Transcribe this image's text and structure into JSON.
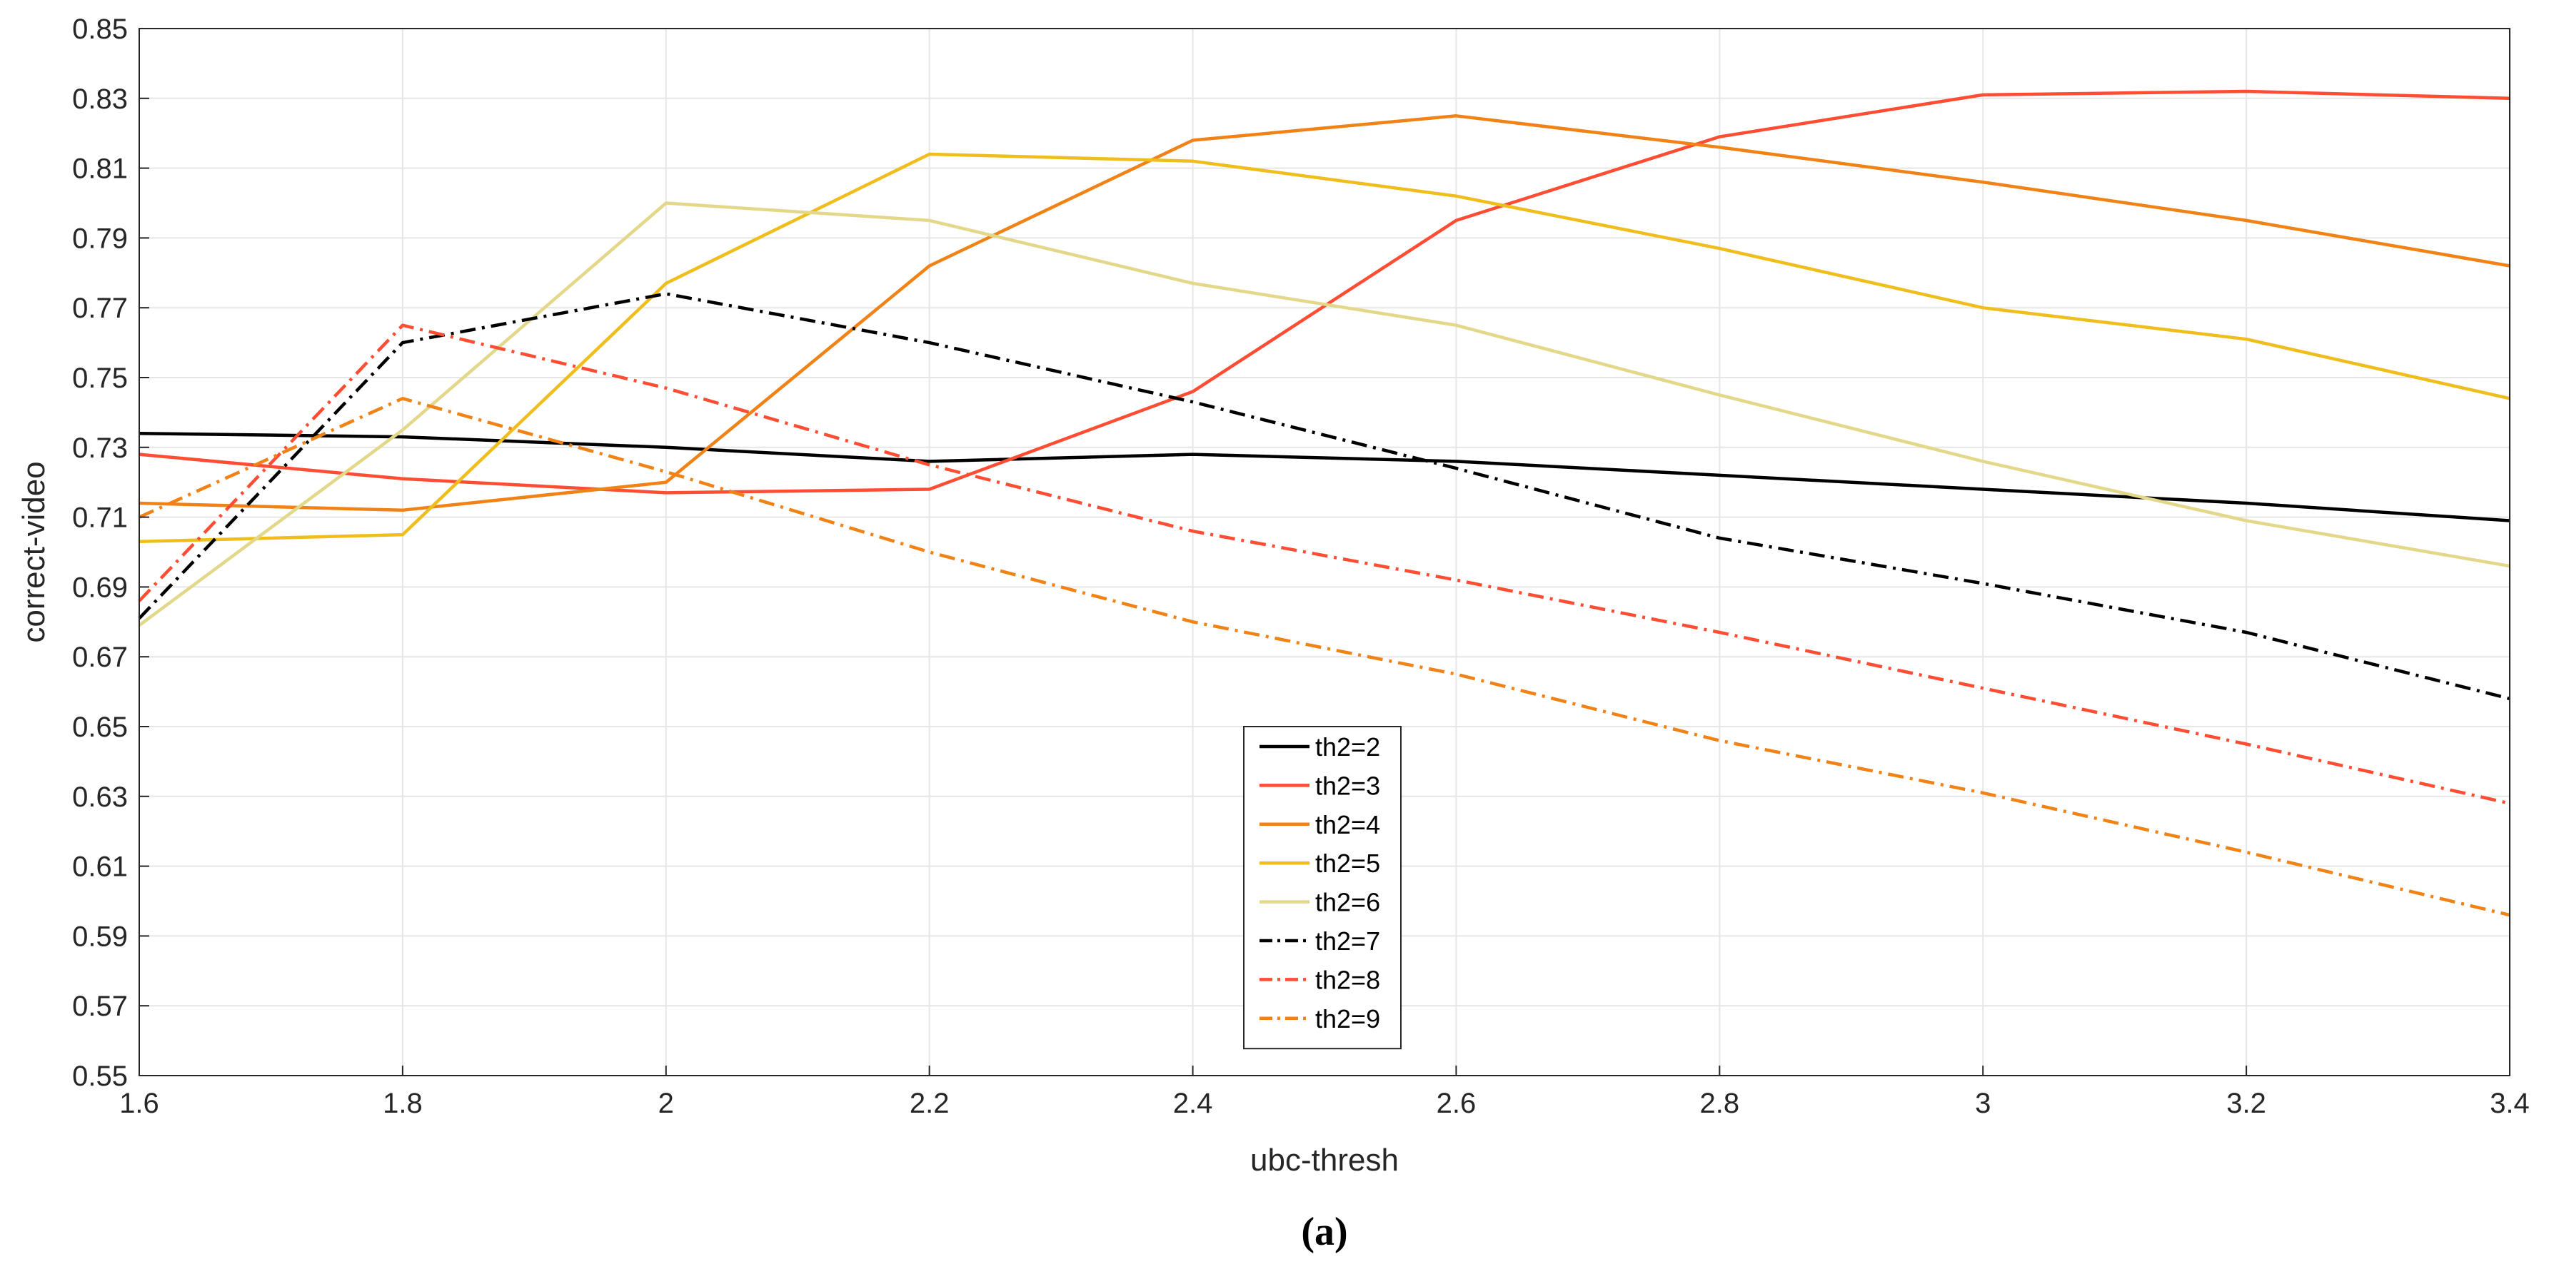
{
  "caption": "(a)",
  "chart_data": {
    "type": "line",
    "title": "",
    "xlabel": "ubc-thresh",
    "ylabel": "correct-video",
    "x": [
      1.6,
      1.8,
      2.0,
      2.2,
      2.4,
      2.6,
      2.8,
      3.0,
      3.2,
      3.4
    ],
    "xlim": [
      1.6,
      3.4
    ],
    "ylim": [
      0.55,
      0.85
    ],
    "x_ticks": [
      "1.6",
      "1.8",
      "2",
      "2.2",
      "2.4",
      "2.6",
      "2.8",
      "3",
      "3.2",
      "3.4"
    ],
    "y_ticks": [
      "0.55",
      "0.57",
      "0.59",
      "0.61",
      "0.63",
      "0.65",
      "0.67",
      "0.69",
      "0.71",
      "0.73",
      "0.75",
      "0.77",
      "0.79",
      "0.81",
      "0.83",
      "0.85"
    ],
    "grid": true,
    "legend_position": "bottom-center",
    "series": [
      {
        "name": "th2=2",
        "color": "#000000",
        "style": "solid",
        "values": [
          0.734,
          0.733,
          0.73,
          0.726,
          0.728,
          0.726,
          0.722,
          0.718,
          0.714,
          0.709
        ]
      },
      {
        "name": "th2=3",
        "color": "#ff4d33",
        "style": "solid",
        "values": [
          0.728,
          0.721,
          0.717,
          0.718,
          0.746,
          0.795,
          0.819,
          0.831,
          0.832,
          0.83
        ]
      },
      {
        "name": "th2=4",
        "color": "#f08216",
        "style": "solid",
        "values": [
          0.714,
          0.712,
          0.72,
          0.782,
          0.818,
          0.825,
          0.816,
          0.806,
          0.795,
          0.782
        ]
      },
      {
        "name": "th2=5",
        "color": "#efbe1c",
        "style": "solid",
        "values": [
          0.703,
          0.705,
          0.777,
          0.814,
          0.812,
          0.802,
          0.787,
          0.77,
          0.761,
          0.744
        ]
      },
      {
        "name": "th2=6",
        "color": "#e3d88a",
        "style": "solid",
        "values": [
          0.679,
          0.735,
          0.8,
          0.795,
          0.777,
          0.765,
          0.745,
          0.726,
          0.709,
          0.696
        ]
      },
      {
        "name": "th2=7",
        "color": "#000000",
        "style": "dashdot",
        "values": [
          0.681,
          0.76,
          0.774,
          0.76,
          0.743,
          0.724,
          0.704,
          0.691,
          0.677,
          0.658
        ]
      },
      {
        "name": "th2=8",
        "color": "#ff4d33",
        "style": "dashdot",
        "values": [
          0.686,
          0.765,
          0.747,
          0.725,
          0.706,
          0.692,
          0.677,
          0.661,
          0.645,
          0.628
        ]
      },
      {
        "name": "th2=9",
        "color": "#f08216",
        "style": "dashdot",
        "values": [
          0.71,
          0.744,
          0.723,
          0.7,
          0.68,
          0.665,
          0.646,
          0.631,
          0.614,
          0.596
        ]
      }
    ]
  }
}
